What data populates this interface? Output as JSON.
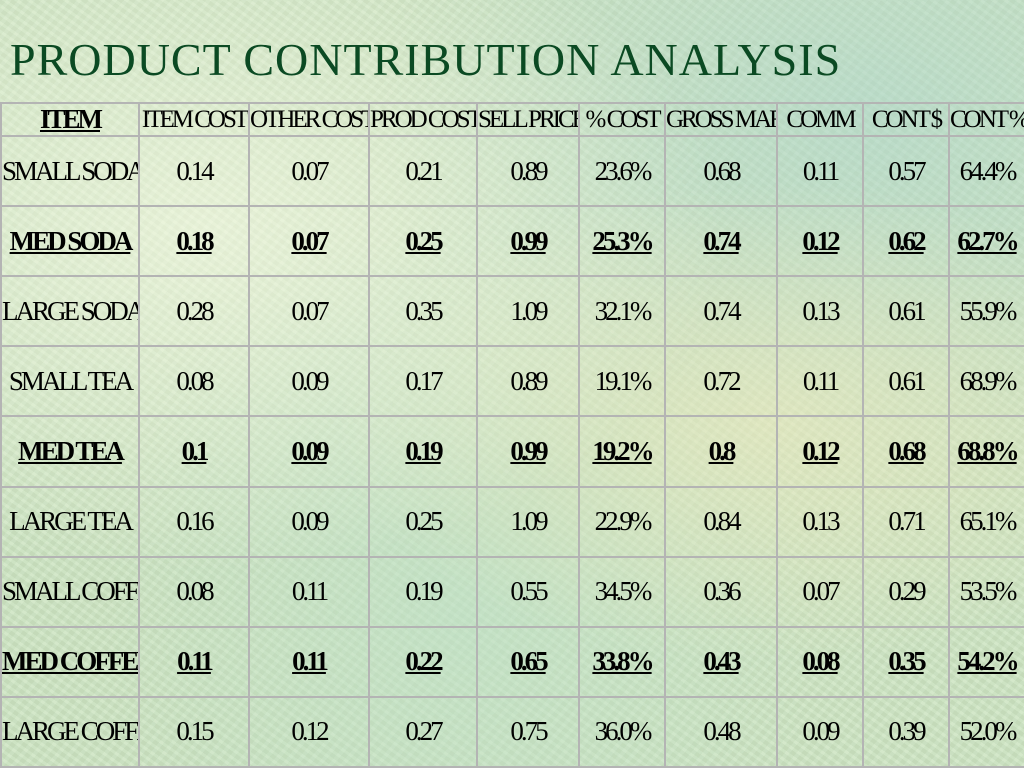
{
  "title": "PRODUCT CONTRIBUTION ANALYSIS",
  "table": {
    "headers": [
      "ITEM",
      "ITEM COST",
      "OTHER COST",
      "PROD COST",
      "SELL PRICE",
      "% COST",
      "GROSS MAR",
      "COMM",
      "CONT $",
      "CONT %"
    ],
    "rows": [
      {
        "bold": false,
        "cells": [
          "SMALL SODA",
          "0.14",
          "0.07",
          "0.21",
          "0.89",
          "23.6%",
          "0.68",
          "0.11",
          "0.57",
          "64.4%"
        ]
      },
      {
        "bold": true,
        "cells": [
          "MED SODA",
          "0.18",
          "0.07",
          "0.25",
          "0.99",
          "25.3%",
          "0.74",
          "0.12",
          "0.62",
          "62.7%"
        ]
      },
      {
        "bold": false,
        "cells": [
          "LARGE SODA",
          "0.28",
          "0.07",
          "0.35",
          "1.09",
          "32.1%",
          "0.74",
          "0.13",
          "0.61",
          "55.9%"
        ]
      },
      {
        "bold": false,
        "cells": [
          "SMALL TEA",
          "0.08",
          "0.09",
          "0.17",
          "0.89",
          "19.1%",
          "0.72",
          "0.11",
          "0.61",
          "68.9%"
        ]
      },
      {
        "bold": true,
        "cells": [
          "MED TEA",
          "0.1",
          "0.09",
          "0.19",
          "0.99",
          "19.2%",
          "0.8",
          "0.12",
          "0.68",
          "68.8%"
        ]
      },
      {
        "bold": false,
        "cells": [
          "LARGE TEA",
          "0.16",
          "0.09",
          "0.25",
          "1.09",
          "22.9%",
          "0.84",
          "0.13",
          "0.71",
          "65.1%"
        ]
      },
      {
        "bold": false,
        "cells": [
          "SMALL COFFEE",
          "0.08",
          "0.11",
          "0.19",
          "0.55",
          "34.5%",
          "0.36",
          "0.07",
          "0.29",
          "53.5%"
        ]
      },
      {
        "bold": true,
        "cells": [
          "MED COFFEE",
          "0.11",
          "0.11",
          "0.22",
          "0.65",
          "33.8%",
          "0.43",
          "0.08",
          "0.35",
          "54.2%"
        ]
      },
      {
        "bold": false,
        "cells": [
          "LARGE COFFEE",
          "0.15",
          "0.12",
          "0.27",
          "0.75",
          "36.0%",
          "0.48",
          "0.09",
          "0.39",
          "52.0%"
        ]
      }
    ]
  },
  "colors": {
    "title": "#0b4a23",
    "grid": "#b4b4b4",
    "background": "#cfe6c4"
  }
}
